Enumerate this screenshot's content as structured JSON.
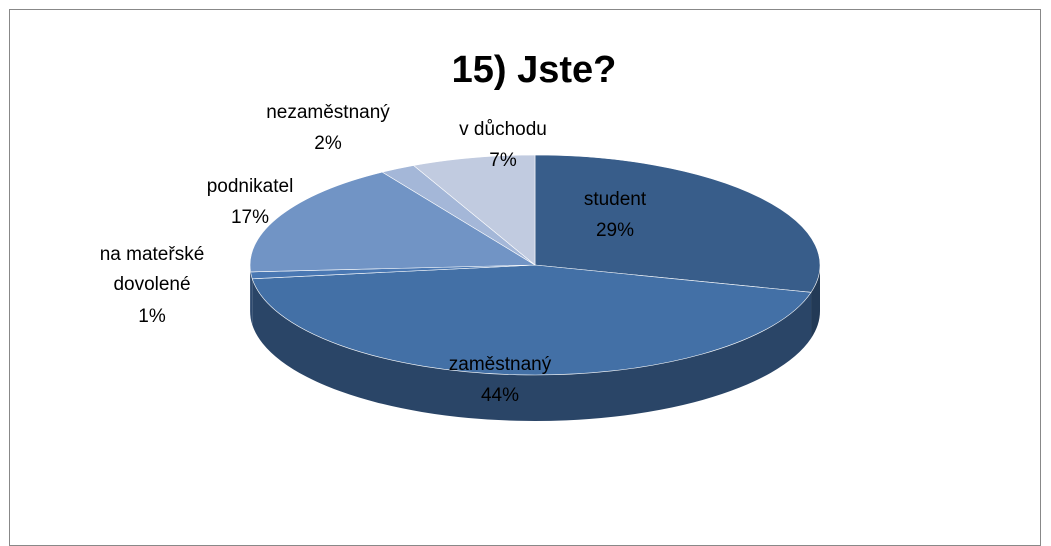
{
  "chart_data": {
    "type": "pie",
    "title": "15) Jste?",
    "categories": [
      "student",
      "zaměstnaný",
      "na mateřské dovolené",
      "podnikatel",
      "nezaměstnaný",
      "v důchodu"
    ],
    "values": [
      29,
      44,
      1,
      17,
      2,
      7
    ],
    "value_labels": [
      "29%",
      "44%",
      "1%",
      "17%",
      "2%",
      "7%"
    ],
    "colors": [
      "#385d8a",
      "#4370a6",
      "#4a78b3",
      "#7194c5",
      "#a4b7d8",
      "#c1cbe0"
    ]
  }
}
